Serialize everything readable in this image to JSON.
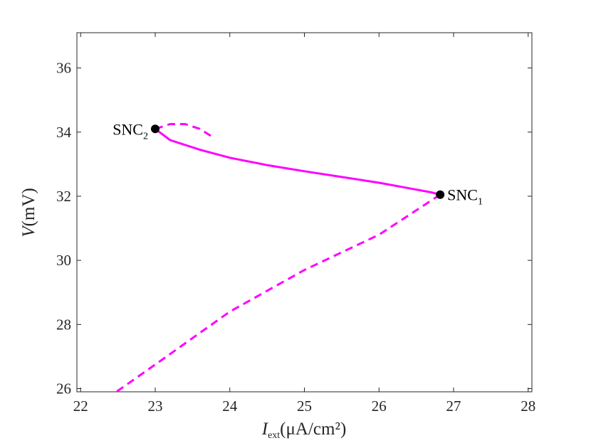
{
  "chart_data": {
    "type": "line",
    "title": "",
    "xlabel": {
      "main": "I",
      "sub": "ext",
      "unit": "(μA/cm²)"
    },
    "ylabel": {
      "main": "V",
      "unit": "(mV)"
    },
    "xlim": [
      21.95,
      28.05
    ],
    "ylim": [
      25.9,
      37.1
    ],
    "xticks": [
      22,
      23,
      24,
      25,
      26,
      27,
      28
    ],
    "yticks": [
      26,
      28,
      30,
      32,
      34,
      36
    ],
    "grid": false,
    "color": "#ff00ff",
    "series": [
      {
        "style": "solid",
        "x": [
          23.0,
          23.2,
          23.6,
          24.0,
          24.5,
          25.0,
          25.5,
          26.0,
          26.4,
          26.7,
          26.82
        ],
        "y": [
          34.1,
          33.75,
          33.45,
          33.2,
          32.97,
          32.78,
          32.6,
          32.42,
          32.25,
          32.12,
          32.05
        ]
      },
      {
        "style": "dashed",
        "x": [
          26.82,
          26.0,
          25.0,
          24.0,
          23.0,
          22.48
        ],
        "y": [
          32.05,
          30.8,
          29.7,
          28.4,
          26.75,
          25.9
        ]
      },
      {
        "style": "dashed",
        "x": [
          23.0,
          23.2,
          23.4,
          23.6,
          23.8
        ],
        "y": [
          34.1,
          34.25,
          34.25,
          34.1,
          33.8
        ]
      }
    ],
    "points": [
      {
        "label": "SNC",
        "sub": "2",
        "x": 23.0,
        "y": 34.1,
        "side": "left"
      },
      {
        "label": "SNC",
        "sub": "1",
        "x": 26.82,
        "y": 32.05,
        "side": "right"
      }
    ]
  }
}
